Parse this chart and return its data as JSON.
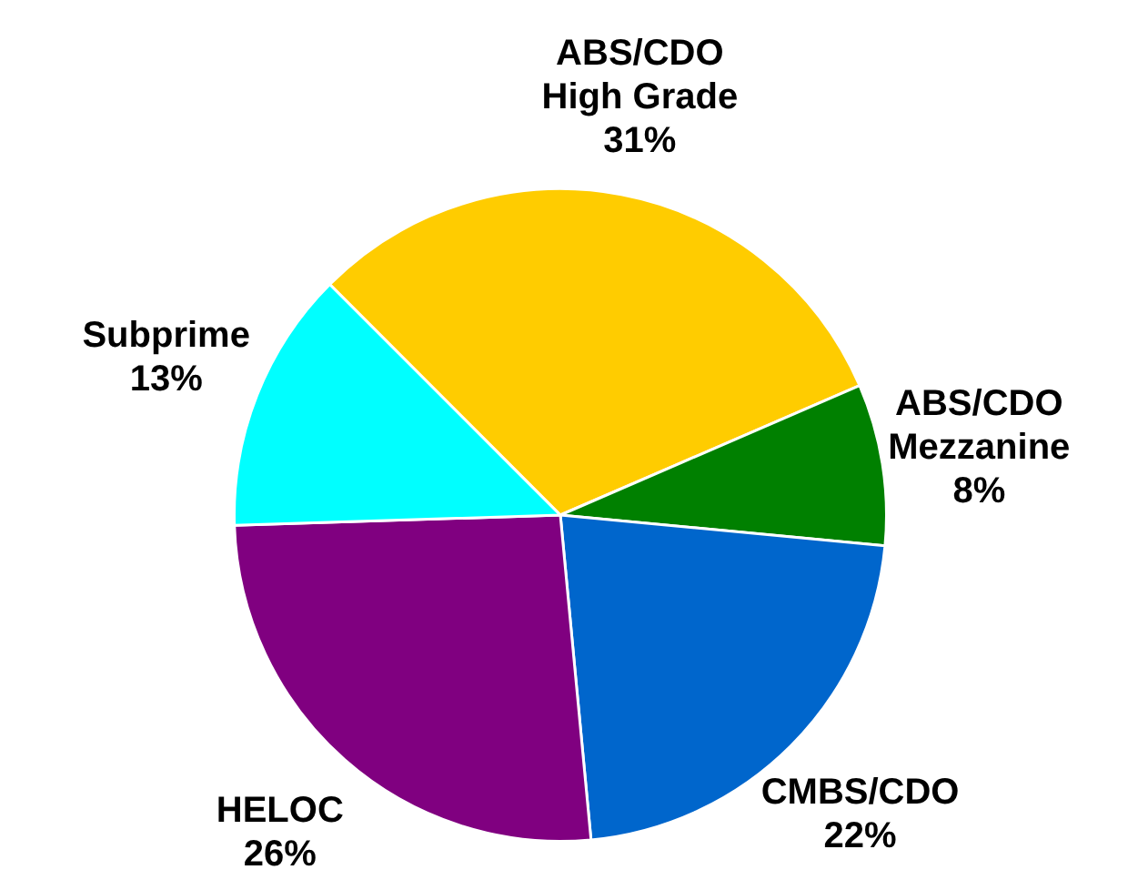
{
  "chart_data": {
    "type": "pie",
    "categories": [
      "ABS/CDO High Grade",
      "ABS/CDO Mezzanine",
      "CMBS/CDO",
      "HELOC",
      "Subprime"
    ],
    "values": [
      31,
      8,
      22,
      26,
      13
    ],
    "value_labels": [
      "31%",
      "8%",
      "22%",
      "26%",
      "13%"
    ],
    "colors": [
      "#ffcc00",
      "#008000",
      "#0066cc",
      "#800080",
      "#00ffff"
    ],
    "legend": false
  }
}
